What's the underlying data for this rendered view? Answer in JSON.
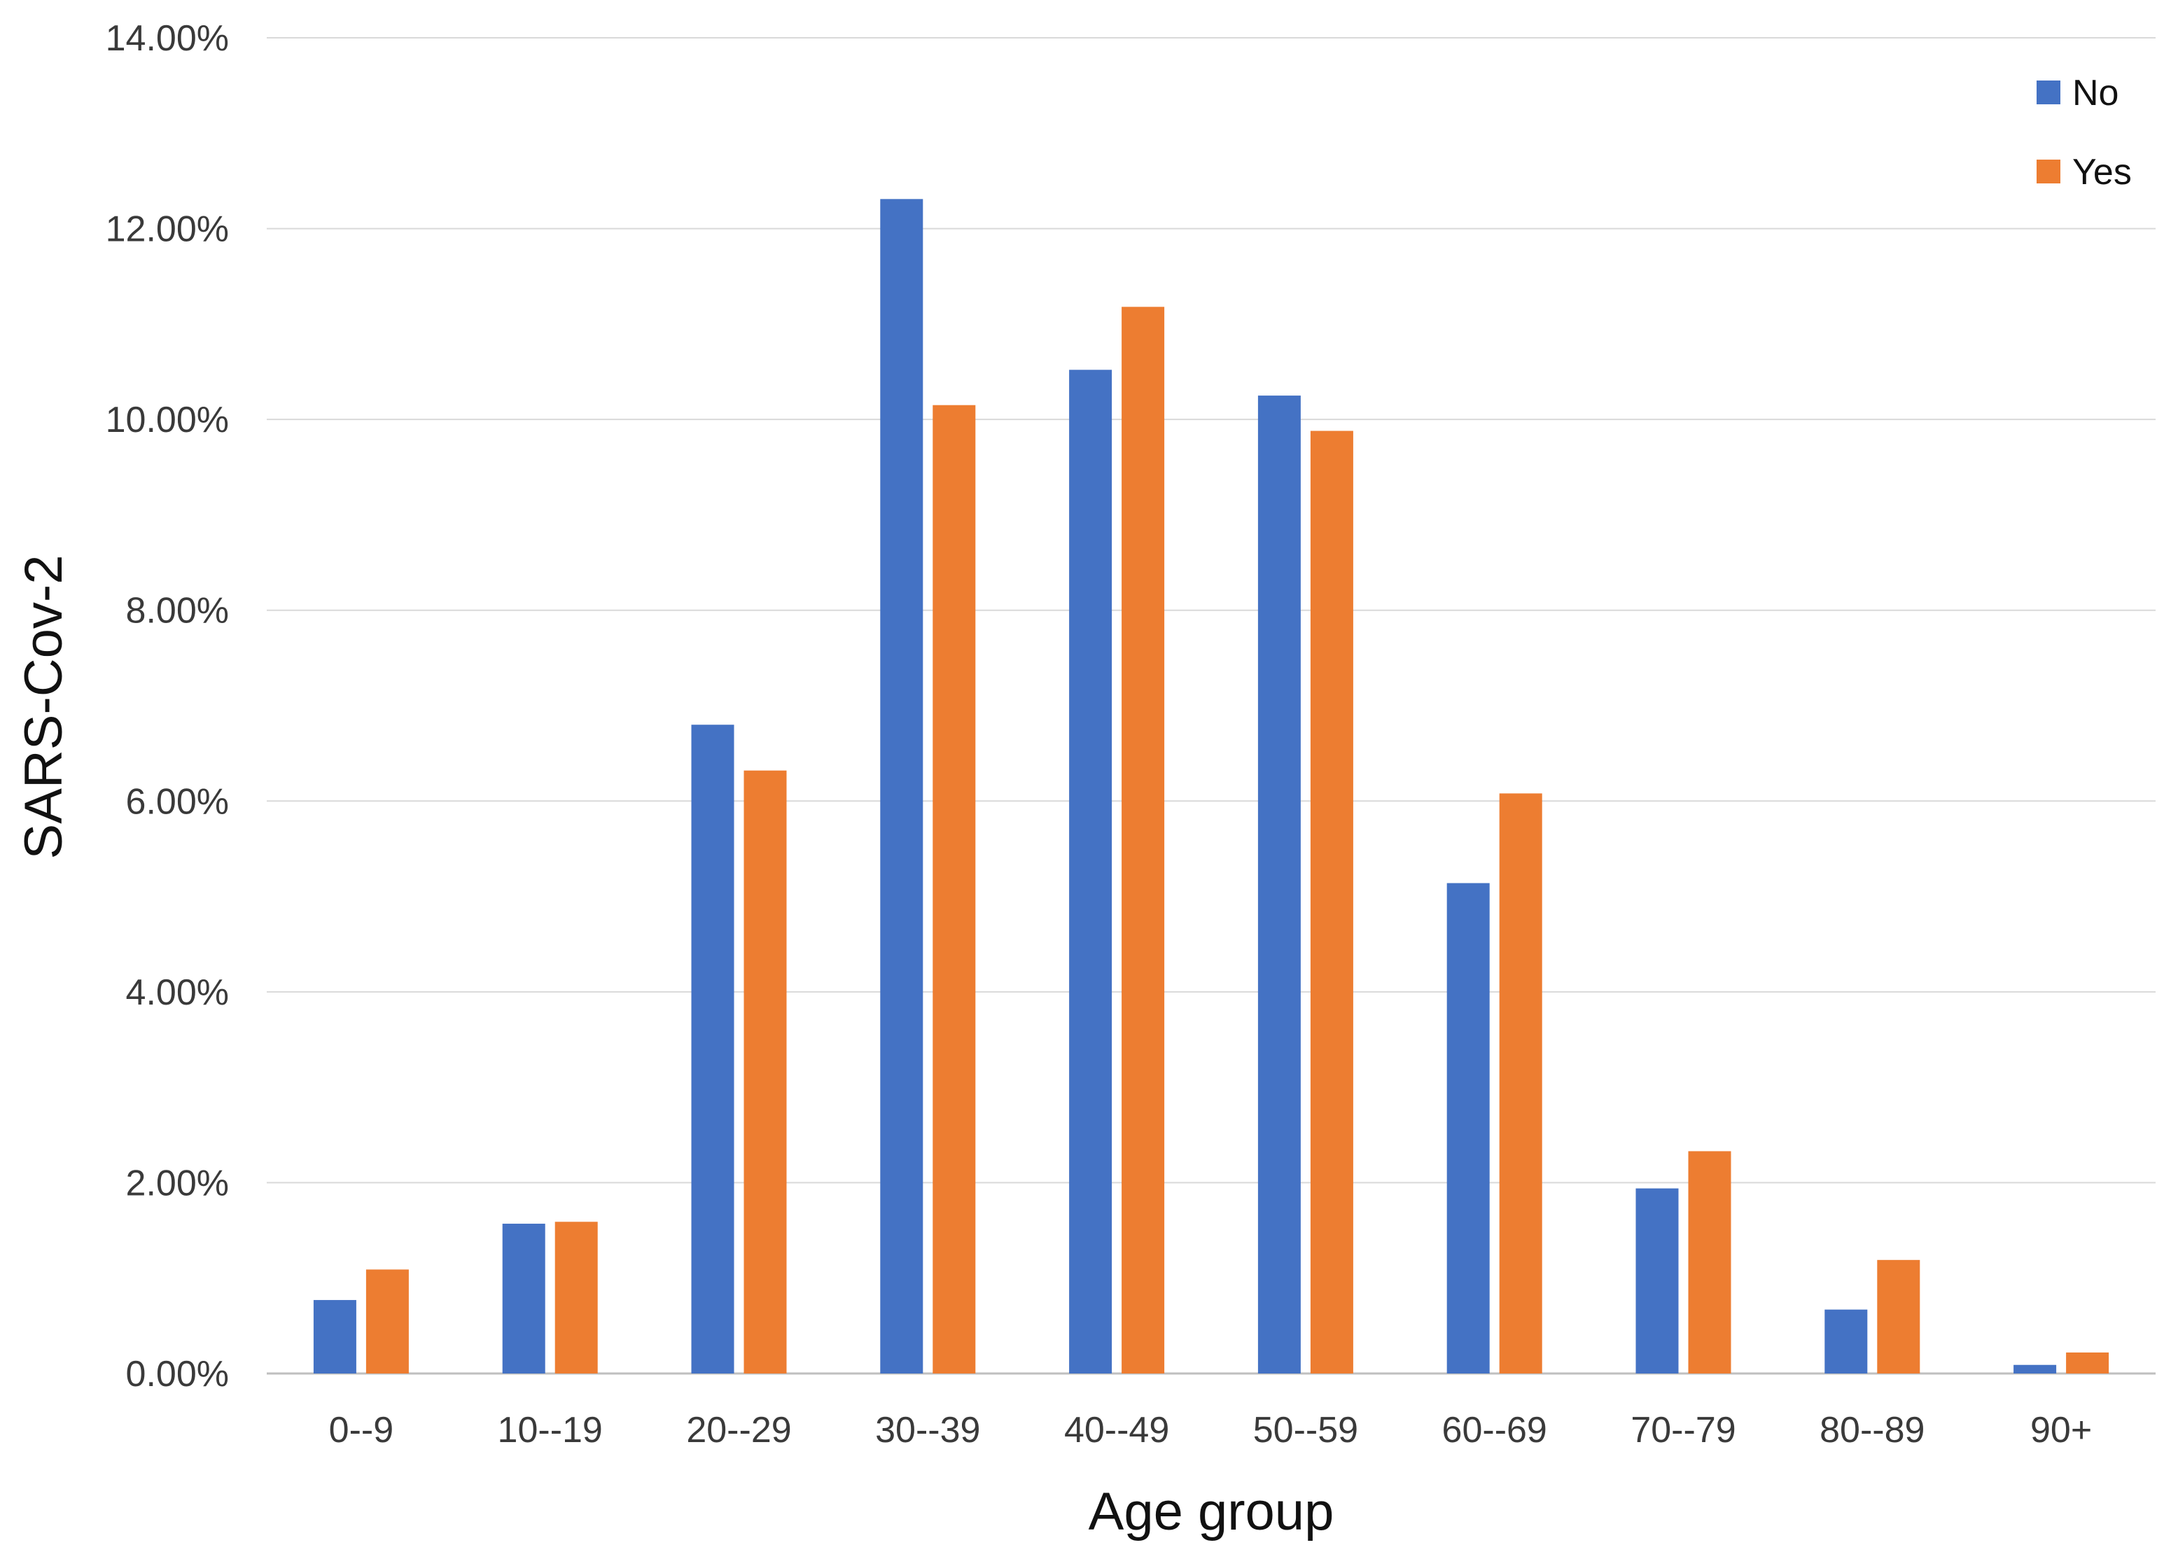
{
  "chart_data": {
    "type": "bar",
    "title": "",
    "xlabel": "Age group",
    "ylabel": "SARS-Cov-2",
    "ylim": [
      0,
      14
    ],
    "yticks": [
      "0.00%",
      "2.00%",
      "4.00%",
      "6.00%",
      "8.00%",
      "10.00%",
      "12.00%",
      "14.00%"
    ],
    "ytick_values": [
      0,
      2,
      4,
      6,
      8,
      10,
      12,
      14
    ],
    "grid": true,
    "legend_position": "top-right",
    "categories": [
      "0--9",
      "10--19",
      "20--29",
      "30--39",
      "40--49",
      "50--59",
      "60--69",
      "70--79",
      "80--89",
      "90+"
    ],
    "series": [
      {
        "name": "No",
        "color": "#4472C4",
        "values": [
          0.77,
          1.57,
          6.8,
          12.31,
          10.52,
          10.25,
          5.14,
          1.94,
          0.67,
          0.09
        ]
      },
      {
        "name": "Yes",
        "color": "#ED7D31",
        "values": [
          1.09,
          1.59,
          6.32,
          10.15,
          11.18,
          9.88,
          6.08,
          2.33,
          1.19,
          0.22
        ]
      }
    ]
  }
}
